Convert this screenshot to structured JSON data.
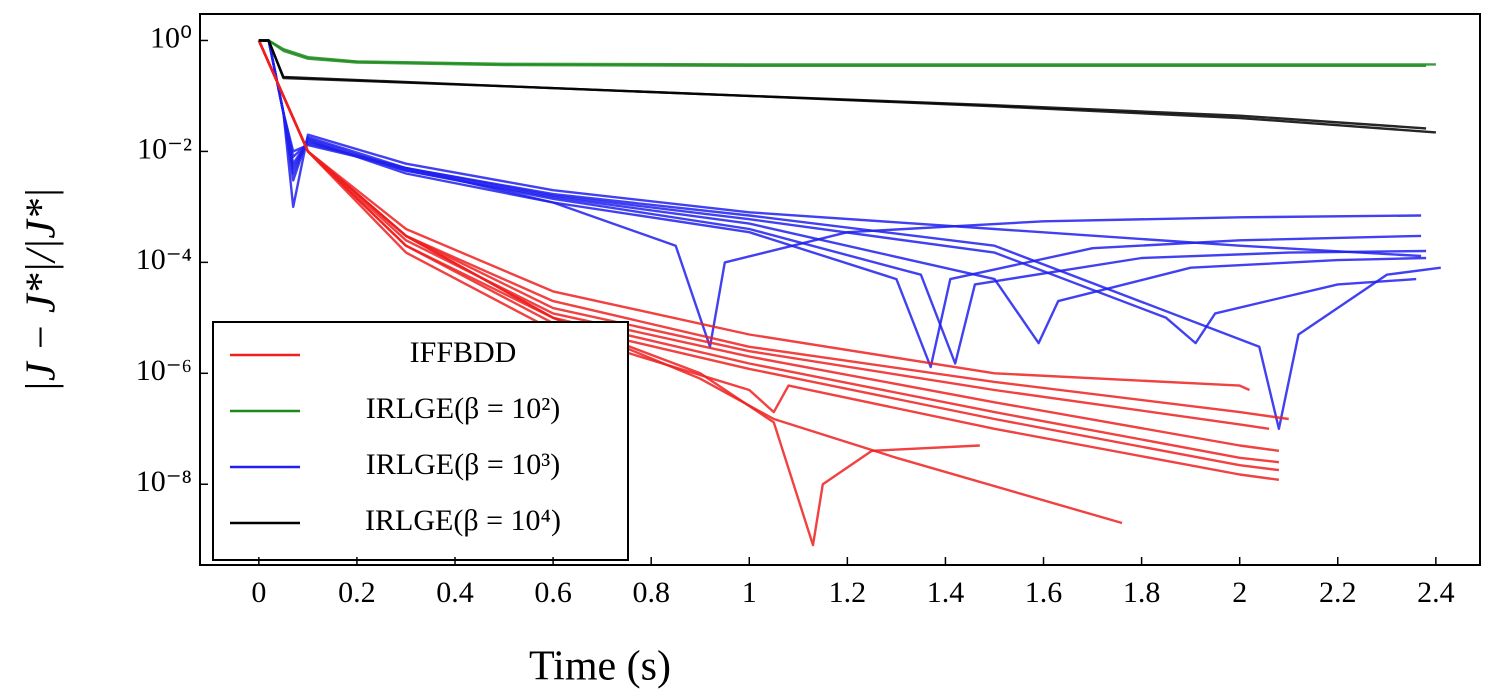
{
  "chart_data": {
    "type": "line",
    "xlabel": "Time (s)",
    "ylabel": "|J − J*|/|J*|",
    "xlim": [
      -0.12,
      2.49
    ],
    "ylim": [
      3,
      3.5e-10
    ],
    "yscale": "log",
    "xticks": [
      0,
      0.2,
      0.4,
      0.6,
      0.8,
      1,
      1.2,
      1.4,
      1.6,
      1.8,
      2,
      2.2,
      2.4
    ],
    "yticks": [
      {
        "value": 1,
        "label": "10⁰"
      },
      {
        "value": 0.01,
        "label": "10⁻²"
      },
      {
        "value": 0.0001,
        "label": "10⁻⁴"
      },
      {
        "value": 1e-06,
        "label": "10⁻⁶"
      },
      {
        "value": 1e-08,
        "label": "10⁻⁸"
      }
    ],
    "legend": "lower left",
    "series": [
      {
        "name": "IFFBDD",
        "color": "#ee2020",
        "lines": [
          {
            "x": [
              0,
              0.1,
              0.3,
              0.6,
              1,
              1.5,
              2,
              2.02
            ],
            "values": [
              1,
              0.01,
              0.0004,
              3e-05,
              5e-06,
              1e-06,
              6e-07,
              5e-07
            ]
          },
          {
            "x": [
              0,
              0.1,
              0.3,
              0.6,
              1,
              1.5,
              2,
              2.1
            ],
            "values": [
              1,
              0.01,
              0.0003,
              2e-05,
              3e-06,
              7e-07,
              2e-07,
              1.5e-07
            ]
          },
          {
            "x": [
              0,
              0.1,
              0.3,
              0.6,
              1,
              1.5,
              2,
              2.06
            ],
            "values": [
              1,
              0.01,
              0.0003,
              1.5e-05,
              2.5e-06,
              5e-07,
              1.2e-07,
              1e-07
            ]
          },
          {
            "x": [
              0,
              0.1,
              0.3,
              0.6,
              1,
              1.5,
              2,
              2.08
            ],
            "values": [
              1,
              0.01,
              0.00025,
              1.2e-05,
              2e-06,
              3e-07,
              5e-08,
              4e-08
            ]
          },
          {
            "x": [
              0,
              0.1,
              0.3,
              0.6,
              1,
              1.5,
              2,
              2.08
            ],
            "values": [
              1,
              0.01,
              0.0002,
              1e-05,
              1.5e-06,
              2e-07,
              3e-08,
              2.5e-08
            ]
          },
          {
            "x": [
              0,
              0.1,
              0.3,
              0.6,
              1,
              1.5,
              2,
              2.08
            ],
            "values": [
              1,
              0.01,
              0.0002,
              8e-06,
              1.2e-06,
              1.5e-07,
              2.2e-08,
              1.8e-08
            ]
          },
          {
            "x": [
              0,
              0.1,
              0.3,
              0.6,
              1,
              1.05,
              1.08,
              1.5,
              2,
              2.08
            ],
            "values": [
              1,
              0.01,
              0.00015,
              6e-06,
              5e-07,
              2e-07,
              6e-07,
              1e-07,
              1.5e-08,
              1.2e-08
            ]
          },
          {
            "x": [
              0,
              0.1,
              0.3,
              0.6,
              0.9,
              1.05,
              1.3,
              1.76
            ],
            "values": [
              1,
              0.01,
              0.0003,
              1e-05,
              8e-07,
              1.5e-07,
              3e-08,
              2e-09
            ]
          },
          {
            "x": [
              0,
              0.1,
              0.3,
              0.6,
              0.9,
              1.05,
              1.13,
              1.15,
              1.25,
              1.47
            ],
            "values": [
              1,
              0.01,
              0.0003,
              1e-05,
              1e-06,
              1.3e-07,
              8e-10,
              1e-08,
              4e-08,
              5e-08
            ]
          }
        ]
      },
      {
        "name": "IRLGE(β = 10²)",
        "color": "#1a8a1a",
        "lines": [
          {
            "x": [
              0,
              0.02,
              0.05,
              0.1,
              0.2,
              0.5,
              1,
              1.5,
              2,
              2.4
            ],
            "values": [
              1,
              1,
              0.7,
              0.5,
              0.42,
              0.38,
              0.37,
              0.37,
              0.37,
              0.37
            ]
          },
          {
            "x": [
              0,
              0.02,
              0.05,
              0.1,
              0.2,
              0.5,
              1,
              1.5,
              2,
              2.38
            ],
            "values": [
              1,
              1,
              0.65,
              0.47,
              0.4,
              0.36,
              0.35,
              0.35,
              0.35,
              0.35
            ]
          }
        ]
      },
      {
        "name": "IRLGE(β = 10³)",
        "color": "#2020ee",
        "lines": [
          {
            "x": [
              0,
              0.02,
              0.05,
              0.07,
              0.1,
              0.3,
              0.6,
              1,
              1.5,
              2,
              2.37
            ],
            "values": [
              1,
              1,
              0.05,
              0.001,
              0.02,
              0.006,
              0.002,
              0.0008,
              0.0004,
              0.0002,
              0.00013
            ]
          },
          {
            "x": [
              0,
              0.02,
              0.05,
              0.07,
              0.1,
              0.3,
              0.6,
              0.85,
              0.92,
              0.95,
              1.2,
              1.6,
              2,
              2.37
            ],
            "values": [
              1,
              1,
              0.05,
              0.003,
              0.018,
              0.005,
              0.0012,
              0.0002,
              3e-06,
              0.0001,
              0.00035,
              0.00055,
              0.00065,
              0.0007
            ]
          },
          {
            "x": [
              0,
              0.02,
              0.05,
              0.07,
              0.1,
              0.3,
              0.6,
              1,
              1.3,
              1.37,
              1.41,
              1.7,
              2,
              2.37
            ],
            "values": [
              1,
              1,
              0.05,
              0.005,
              0.016,
              0.004,
              0.0012,
              0.00035,
              5e-05,
              1.3e-06,
              5e-05,
              0.00018,
              0.00025,
              0.0003
            ]
          },
          {
            "x": [
              0,
              0.02,
              0.05,
              0.07,
              0.1,
              0.3,
              0.6,
              1,
              1.35,
              1.42,
              1.46,
              1.8,
              2.1,
              2.38
            ],
            "values": [
              1,
              1,
              0.05,
              0.004,
              0.017,
              0.0045,
              0.0014,
              0.0004,
              6e-05,
              1.5e-06,
              4e-05,
              0.00012,
              0.00015,
              0.00016
            ]
          },
          {
            "x": [
              0,
              0.02,
              0.05,
              0.07,
              0.1,
              0.3,
              0.6,
              1,
              1.5,
              1.59,
              1.63,
              1.9,
              2.2,
              2.38
            ],
            "values": [
              1,
              1,
              0.05,
              0.006,
              0.015,
              0.0045,
              0.0015,
              0.0005,
              5e-05,
              3.5e-06,
              2e-05,
              8e-05,
              0.00011,
              0.00012
            ]
          },
          {
            "x": [
              0,
              0.02,
              0.05,
              0.07,
              0.1,
              0.3,
              0.6,
              1,
              1.5,
              1.85,
              1.91,
              1.95,
              2.2,
              2.36
            ],
            "values": [
              1,
              1,
              0.05,
              0.008,
              0.014,
              0.005,
              0.0016,
              0.0006,
              0.00015,
              1e-05,
              3.5e-06,
              1.2e-05,
              4e-05,
              5e-05
            ]
          },
          {
            "x": [
              0,
              0.02,
              0.05,
              0.07,
              0.1,
              0.3,
              0.6,
              1,
              1.5,
              2.04,
              2.08,
              2.12,
              2.3,
              2.41
            ],
            "values": [
              1,
              1,
              0.05,
              0.01,
              0.013,
              0.005,
              0.0017,
              0.0007,
              0.0002,
              3e-06,
              1e-07,
              5e-06,
              6e-05,
              8e-05
            ]
          }
        ]
      },
      {
        "name": "IRLGE(β = 10⁴)",
        "color": "#000000",
        "lines": [
          {
            "x": [
              0,
              0.02,
              0.05,
              0.5,
              1,
              1.5,
              2,
              2.4
            ],
            "values": [
              1,
              1,
              0.22,
              0.15,
              0.1,
              0.065,
              0.04,
              0.022
            ]
          },
          {
            "x": [
              0,
              0.02,
              0.05,
              0.5,
              1,
              1.5,
              2,
              2.38
            ],
            "values": [
              1,
              1,
              0.21,
              0.15,
              0.1,
              0.068,
              0.044,
              0.026
            ]
          }
        ]
      }
    ]
  }
}
